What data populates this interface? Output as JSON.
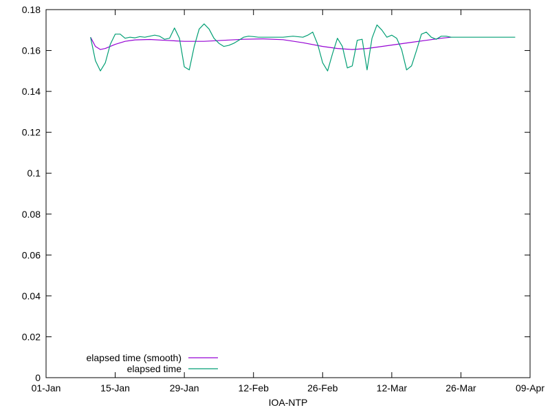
{
  "chart_data": {
    "type": "line",
    "title": "",
    "xlabel": "IOA-NTP",
    "ylabel": "",
    "x_axis": {
      "type": "date",
      "range": [
        "2021-01-01",
        "2021-04-09"
      ],
      "ticks": [
        {
          "date": "2021-01-01",
          "label": "01-Jan"
        },
        {
          "date": "2021-01-15",
          "label": "15-Jan"
        },
        {
          "date": "2021-01-29",
          "label": "29-Jan"
        },
        {
          "date": "2021-02-12",
          "label": "12-Feb"
        },
        {
          "date": "2021-02-26",
          "label": "26-Feb"
        },
        {
          "date": "2021-03-12",
          "label": "12-Mar"
        },
        {
          "date": "2021-03-26",
          "label": "26-Mar"
        },
        {
          "date": "2021-04-09",
          "label": "09-Apr"
        }
      ]
    },
    "y_axis": {
      "range": [
        0,
        0.18
      ],
      "ticks": [
        {
          "value": 0,
          "label": "0"
        },
        {
          "value": 0.02,
          "label": "0.02"
        },
        {
          "value": 0.04,
          "label": "0.04"
        },
        {
          "value": 0.06,
          "label": "0.06"
        },
        {
          "value": 0.08,
          "label": "0.08"
        },
        {
          "value": 0.1,
          "label": "0.1"
        },
        {
          "value": 0.12,
          "label": "0.12"
        },
        {
          "value": 0.14,
          "label": "0.14"
        },
        {
          "value": 0.16,
          "label": "0.16"
        },
        {
          "value": 0.18,
          "label": "0.18"
        }
      ]
    },
    "grid": false,
    "legend_position": "bottom-left",
    "series": [
      {
        "name": "elapsed time (smooth)",
        "color": "#9400d3",
        "points": [
          [
            "2021-01-10",
            0.1665
          ],
          [
            "2021-01-11",
            0.162
          ],
          [
            "2021-01-12",
            0.1605
          ],
          [
            "2021-01-13",
            0.161
          ],
          [
            "2021-01-15",
            0.163
          ],
          [
            "2021-01-17",
            0.1645
          ],
          [
            "2021-01-19",
            0.1652
          ],
          [
            "2021-01-22",
            0.1654
          ],
          [
            "2021-01-25",
            0.165
          ],
          [
            "2021-01-29",
            0.1645
          ],
          [
            "2021-02-02",
            0.1645
          ],
          [
            "2021-02-06",
            0.165
          ],
          [
            "2021-02-10",
            0.1655
          ],
          [
            "2021-02-14",
            0.1657
          ],
          [
            "2021-02-18",
            0.1653
          ],
          [
            "2021-02-22",
            0.1638
          ],
          [
            "2021-02-26",
            0.162
          ],
          [
            "2021-03-01",
            0.161
          ],
          [
            "2021-03-04",
            0.1605
          ],
          [
            "2021-03-07",
            0.161
          ],
          [
            "2021-03-10",
            0.162
          ],
          [
            "2021-03-13",
            0.163
          ],
          [
            "2021-03-16",
            0.164
          ],
          [
            "2021-03-19",
            0.165
          ],
          [
            "2021-03-22",
            0.166
          ],
          [
            "2021-03-24",
            0.1665
          ]
        ]
      },
      {
        "name": "elapsed time",
        "color": "#009e73",
        "points": [
          [
            "2021-01-10",
            0.1665
          ],
          [
            "2021-01-11",
            0.155
          ],
          [
            "2021-01-12",
            0.15
          ],
          [
            "2021-01-13",
            0.154
          ],
          [
            "2021-01-14",
            0.163
          ],
          [
            "2021-01-15",
            0.168
          ],
          [
            "2021-01-16",
            0.168
          ],
          [
            "2021-01-17",
            0.166
          ],
          [
            "2021-01-18",
            0.1665
          ],
          [
            "2021-01-19",
            0.1662
          ],
          [
            "2021-01-20",
            0.1668
          ],
          [
            "2021-01-21",
            0.1665
          ],
          [
            "2021-01-22",
            0.167
          ],
          [
            "2021-01-23",
            0.1675
          ],
          [
            "2021-01-24",
            0.167
          ],
          [
            "2021-01-25",
            0.1655
          ],
          [
            "2021-01-26",
            0.166
          ],
          [
            "2021-01-27",
            0.171
          ],
          [
            "2021-01-28",
            0.166
          ],
          [
            "2021-01-29",
            0.152
          ],
          [
            "2021-01-30",
            0.1505
          ],
          [
            "2021-01-31",
            0.162
          ],
          [
            "2021-02-01",
            0.1705
          ],
          [
            "2021-02-02",
            0.173
          ],
          [
            "2021-02-03",
            0.1705
          ],
          [
            "2021-02-04",
            0.166
          ],
          [
            "2021-02-05",
            0.1635
          ],
          [
            "2021-02-06",
            0.162
          ],
          [
            "2021-02-07",
            0.1625
          ],
          [
            "2021-02-08",
            0.1635
          ],
          [
            "2021-02-09",
            0.165
          ],
          [
            "2021-02-10",
            0.1665
          ],
          [
            "2021-02-11",
            0.167
          ],
          [
            "2021-02-12",
            0.1668
          ],
          [
            "2021-02-13",
            0.1665
          ],
          [
            "2021-02-14",
            0.1665
          ],
          [
            "2021-02-16",
            0.1665
          ],
          [
            "2021-02-18",
            0.1665
          ],
          [
            "2021-02-20",
            0.167
          ],
          [
            "2021-02-22",
            0.1665
          ],
          [
            "2021-02-23",
            0.1675
          ],
          [
            "2021-02-24",
            0.169
          ],
          [
            "2021-02-25",
            0.163
          ],
          [
            "2021-02-26",
            0.154
          ],
          [
            "2021-02-27",
            0.15
          ],
          [
            "2021-02-28",
            0.1585
          ],
          [
            "2021-03-01",
            0.166
          ],
          [
            "2021-03-02",
            0.162
          ],
          [
            "2021-03-03",
            0.1515
          ],
          [
            "2021-03-04",
            0.1525
          ],
          [
            "2021-03-05",
            0.165
          ],
          [
            "2021-03-06",
            0.1655
          ],
          [
            "2021-03-07",
            0.1505
          ],
          [
            "2021-03-08",
            0.166
          ],
          [
            "2021-03-09",
            0.1725
          ],
          [
            "2021-03-10",
            0.17
          ],
          [
            "2021-03-11",
            0.1665
          ],
          [
            "2021-03-12",
            0.1675
          ],
          [
            "2021-03-13",
            0.166
          ],
          [
            "2021-03-14",
            0.1605
          ],
          [
            "2021-03-15",
            0.1505
          ],
          [
            "2021-03-16",
            0.1525
          ],
          [
            "2021-03-17",
            0.16
          ],
          [
            "2021-03-18",
            0.168
          ],
          [
            "2021-03-19",
            0.169
          ],
          [
            "2021-03-20",
            0.1665
          ],
          [
            "2021-03-21",
            0.1655
          ],
          [
            "2021-03-22",
            0.167
          ],
          [
            "2021-03-23",
            0.167
          ],
          [
            "2021-03-24",
            0.1665
          ],
          [
            "2021-03-26",
            0.1665
          ],
          [
            "2021-03-30",
            0.1665
          ],
          [
            "2021-04-03",
            0.1665
          ],
          [
            "2021-04-06",
            0.1665
          ]
        ]
      }
    ]
  }
}
